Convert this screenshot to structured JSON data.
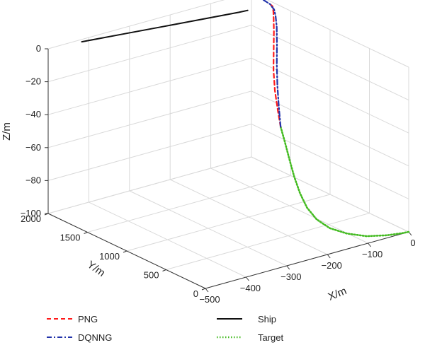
{
  "chart_data": {
    "type": "line",
    "projection": "3d",
    "xlabel": "X/m",
    "ylabel": "Y/m",
    "zlabel": "Z/m",
    "xlim": [
      -500,
      0
    ],
    "ylim": [
      0,
      2000
    ],
    "zlim": [
      -100,
      0
    ],
    "x_ticks": [
      "−500",
      "−400",
      "−300",
      "−200",
      "−100",
      "0"
    ],
    "y_ticks": [
      "0",
      "500",
      "1000",
      "1500",
      "2000"
    ],
    "z_ticks": [
      "0",
      "−20",
      "−40",
      "−60",
      "−80",
      "−100"
    ],
    "grid": true,
    "legend_position": "bottom",
    "series": [
      {
        "name": "PNG",
        "color": "#ff1a1a",
        "style": "dashed",
        "points": [
          {
            "x": -82,
            "y": 1205,
            "z": -58
          },
          {
            "x": -78,
            "y": 1260,
            "z": -50
          },
          {
            "x": -70,
            "y": 1340,
            "z": -40
          },
          {
            "x": -58,
            "y": 1420,
            "z": -30
          },
          {
            "x": -42,
            "y": 1500,
            "z": -20
          },
          {
            "x": -28,
            "y": 1570,
            "z": -12
          },
          {
            "x": -18,
            "y": 1625,
            "z": -6
          },
          {
            "x": -12,
            "y": 1660,
            "z": -3
          },
          {
            "x": -8,
            "y": 1690,
            "z": -1
          },
          {
            "x": -10,
            "y": 1710,
            "z": 0
          }
        ]
      },
      {
        "name": "DQNNG",
        "color": "#2233aa",
        "style": "dashdot",
        "points": [
          {
            "x": -82,
            "y": 1205,
            "z": -58
          },
          {
            "x": -72,
            "y": 1280,
            "z": -48
          },
          {
            "x": -60,
            "y": 1360,
            "z": -38
          },
          {
            "x": -46,
            "y": 1440,
            "z": -28
          },
          {
            "x": -32,
            "y": 1510,
            "z": -18
          },
          {
            "x": -20,
            "y": 1575,
            "z": -10
          },
          {
            "x": -14,
            "y": 1620,
            "z": -5
          },
          {
            "x": -10,
            "y": 1660,
            "z": -2
          },
          {
            "x": -10,
            "y": 1690,
            "z": -1
          },
          {
            "x": -10,
            "y": 1710,
            "z": 0
          },
          {
            "x": -5,
            "y": 1860,
            "z": 0
          },
          {
            "x": 0,
            "y": 2000,
            "z": 0
          }
        ]
      },
      {
        "name": "Ship",
        "color": "#111111",
        "style": "solid",
        "points": [
          {
            "x": -425,
            "y": 1960,
            "z": 0
          },
          {
            "x": -340,
            "y": 1900,
            "z": 0
          },
          {
            "x": -255,
            "y": 1840,
            "z": 0
          },
          {
            "x": -170,
            "y": 1780,
            "z": 0
          },
          {
            "x": -85,
            "y": 1720,
            "z": 0
          },
          {
            "x": -65,
            "y": 1712,
            "z": 0
          }
        ]
      },
      {
        "name": "Target",
        "color": "#44bb22",
        "style": "dotted",
        "points": [
          {
            "x": -82,
            "y": 1205,
            "z": -58
          },
          {
            "x": -92,
            "y": 1100,
            "z": -64
          },
          {
            "x": -104,
            "y": 980,
            "z": -71
          },
          {
            "x": -117,
            "y": 850,
            "z": -78
          },
          {
            "x": -129,
            "y": 715,
            "z": -84
          },
          {
            "x": -138,
            "y": 580,
            "z": -89
          },
          {
            "x": -140,
            "y": 445,
            "z": -93
          },
          {
            "x": -132,
            "y": 320,
            "z": -96
          },
          {
            "x": -112,
            "y": 205,
            "z": -98
          },
          {
            "x": -82,
            "y": 110,
            "z": -99.5
          },
          {
            "x": -45,
            "y": 45,
            "z": -100
          },
          {
            "x": -15,
            "y": 10,
            "z": -100
          },
          {
            "x": 0,
            "y": 0,
            "z": -100
          }
        ]
      }
    ]
  }
}
